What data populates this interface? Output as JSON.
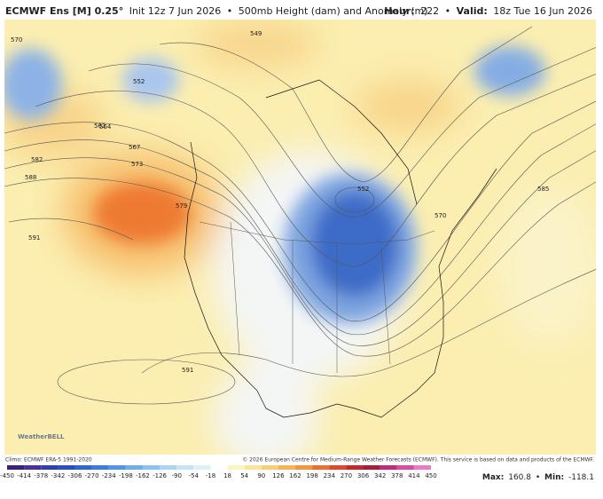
{
  "header": {
    "model": "ECMWF Ens [M] 0.25°",
    "init": "Init 12z 7 Jun 2026",
    "product": "500mb Height (dam) and Anomaly (m)",
    "hour_label": "Hour:",
    "hour": "222",
    "valid_label": "Valid:",
    "valid": "18z Tue 16 Jun 2026"
  },
  "contour_labels": [
    "570",
    "552",
    "549",
    "561",
    "564",
    "567",
    "573",
    "582",
    "588",
    "579",
    "591",
    "552",
    "570",
    "585",
    "591"
  ],
  "logo": "WeatherBELL",
  "footer": {
    "climo": "Climo: ECMWF ERA-5 1991-2020",
    "copyright": "© 2026 European Centre for Medium-Range Weather Forecasts (ECMWF). This service is based on data and products of the ECMWF."
  },
  "colorbar": {
    "ticks": [
      -450,
      -414,
      -378,
      -342,
      -306,
      -270,
      -234,
      -198,
      -162,
      -126,
      -90,
      -54,
      -18,
      18,
      54,
      90,
      126,
      162,
      198,
      234,
      270,
      306,
      342,
      378,
      414,
      450
    ]
  },
  "stats": {
    "max_label": "Max:",
    "max": "160.8",
    "min_label": "Min:",
    "min": "-118.1"
  }
}
